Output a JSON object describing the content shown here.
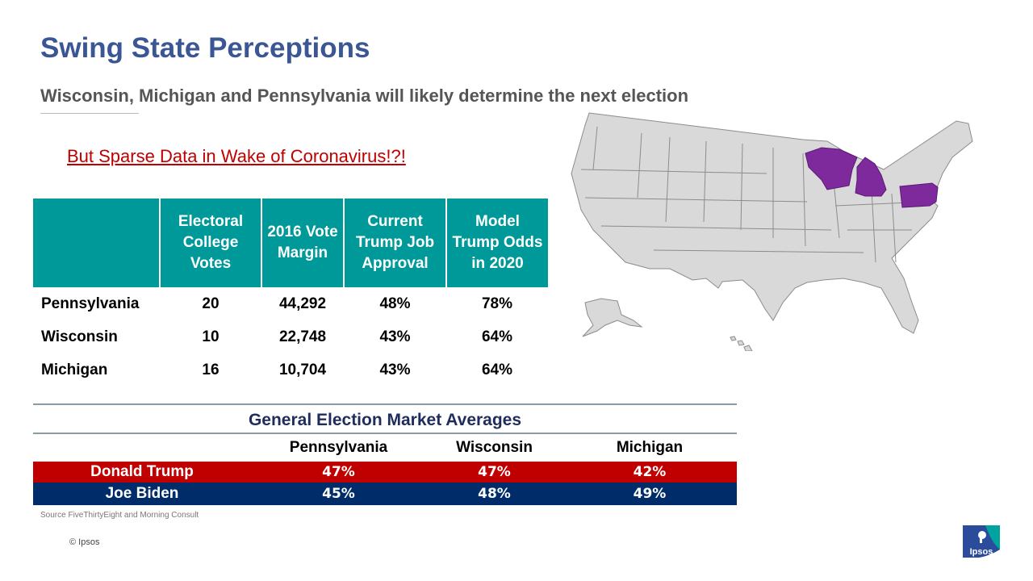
{
  "title": "Swing State Perceptions",
  "subtitle": "Wisconsin, Michigan and Pennsylvania will likely determine the next election",
  "alert": "But Sparse Data in Wake of Coronavirus!?!",
  "stats_table": {
    "headers": [
      "",
      "Electoral College Votes",
      "2016 Vote Margin",
      "Current Trump Job Approval",
      "Model Trump Odds in 2020"
    ],
    "rows": [
      {
        "state": "Pennsylvania",
        "ev": "20",
        "margin": "44,292",
        "approval": "48%",
        "odds": "78%"
      },
      {
        "state": "Wisconsin",
        "ev": "10",
        "margin": "22,748",
        "approval": "43%",
        "odds": "64%"
      },
      {
        "state": "Michigan",
        "ev": "16",
        "margin": "10,704",
        "approval": "43%",
        "odds": "64%"
      }
    ]
  },
  "market": {
    "title": "General Election Market Averages",
    "columns": [
      "Pennsylvania",
      "Wisconsin",
      "Michigan"
    ],
    "rows": [
      {
        "name": "Donald Trump",
        "values": [
          "47%",
          "47%",
          "42%"
        ]
      },
      {
        "name": "Joe Biden",
        "values": [
          "45%",
          "48%",
          "49%"
        ]
      }
    ]
  },
  "source": "Source FiveThirtyEight and Morning Consult",
  "copyright": "© Ipsos",
  "logo_text": "Ipsos",
  "colors": {
    "title": "#3a5694",
    "teal_header": "#009999",
    "alert_red": "#c00000",
    "trump_red": "#c00000",
    "biden_blue": "#002d6a",
    "swing_state_purple": "#7f2a9c",
    "map_gray": "#d9d9d9"
  },
  "map": {
    "highlighted_states": [
      "Wisconsin",
      "Michigan",
      "Pennsylvania"
    ]
  }
}
